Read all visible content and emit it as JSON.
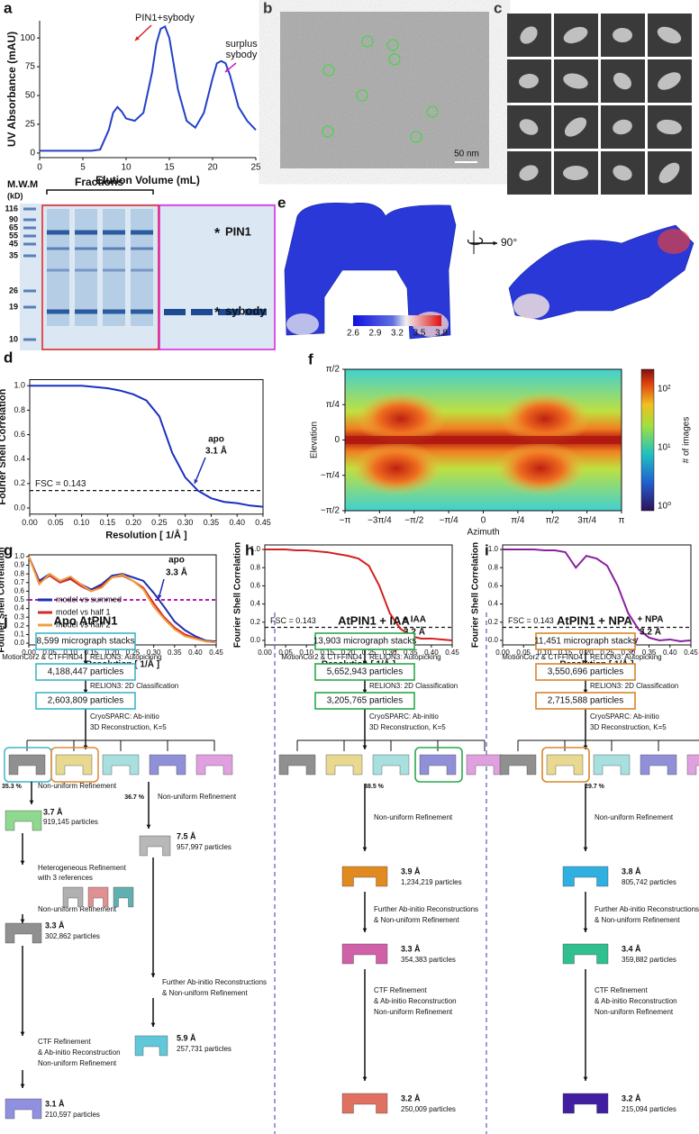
{
  "chart_data": [
    {
      "type": "line",
      "x_label": "Elution Volume (mL)",
      "y_label": "UV Absorbance (mAU)",
      "x": [
        0,
        2,
        4,
        6,
        7,
        8,
        8.5,
        9,
        9.5,
        10,
        11,
        12,
        13,
        13.5,
        14,
        14.5,
        15,
        16,
        17,
        18,
        19,
        20,
        20.5,
        21,
        21.5,
        22,
        23,
        24,
        25
      ],
      "series": [
        {
          "color": "#2340c8",
          "values": [
            2,
            2,
            2,
            2,
            3,
            20,
            35,
            40,
            36,
            30,
            28,
            35,
            70,
            95,
            108,
            110,
            100,
            55,
            28,
            22,
            35,
            65,
            78,
            80,
            78,
            68,
            40,
            28,
            20
          ]
        }
      ],
      "xlim": [
        0,
        25
      ],
      "ylim": [
        -4,
        115
      ],
      "xticks": [
        0,
        5,
        10,
        15,
        20,
        25
      ],
      "yticks": [
        0,
        25,
        50,
        75,
        100
      ],
      "annotations": [
        {
          "text": "PIN1+sybody",
          "color": "#111"
        },
        {
          "text": "surplus",
          "color": "#111"
        },
        {
          "text": "sybody",
          "color": "#111"
        }
      ]
    },
    {
      "type": "line",
      "x_label": "Resolution [ 1/Å ]",
      "y_label": "Fourier Shell Correlation",
      "x": [
        0,
        0.025,
        0.05,
        0.075,
        0.1,
        0.125,
        0.15,
        0.175,
        0.2,
        0.225,
        0.25,
        0.275,
        0.3,
        0.325,
        0.35,
        0.375,
        0.4,
        0.425,
        0.45
      ],
      "series": [
        {
          "color": "#1a2fbf",
          "values": [
            1,
            1,
            1,
            1,
            1,
            0.99,
            0.98,
            0.96,
            0.93,
            0.88,
            0.75,
            0.45,
            0.25,
            0.14,
            0.08,
            0.05,
            0.04,
            0.02,
            0.01
          ]
        }
      ],
      "xlim": [
        0,
        0.45
      ],
      "ylim": [
        -0.05,
        1.05
      ],
      "xticks": [
        {
          "value": 0,
          "label": "0.00"
        },
        0.05,
        {
          "value": 0.1,
          "label": "0.10"
        },
        0.15,
        {
          "value": 0.2,
          "label": "0.20"
        },
        0.25,
        {
          "value": 0.3,
          "label": "0.30"
        },
        0.35,
        {
          "value": 0.4,
          "label": "0.40"
        },
        0.45
      ],
      "yticks": [
        {
          "value": 0,
          "label": "0.0"
        },
        0.2,
        0.4,
        0.6,
        0.8,
        {
          "value": 1,
          "label": "1.0"
        }
      ],
      "threshold": {
        "value": 0.143,
        "label": "FSC = 0.143",
        "color": "#111"
      },
      "annotations": [
        {
          "text": "apo",
          "color": "#2a3fc8"
        },
        {
          "text": "3.1 Å",
          "color": "#2a3fc8"
        }
      ]
    },
    {
      "type": "line",
      "x_label": "Resolution [ 1/Å ]",
      "y_label": "Fourier Shell Correlation",
      "x": [
        0,
        0.025,
        0.05,
        0.075,
        0.1,
        0.125,
        0.15,
        0.175,
        0.2,
        0.225,
        0.25,
        0.275,
        0.3,
        0.325,
        0.35,
        0.375,
        0.4,
        0.425,
        0.45
      ],
      "series": [
        {
          "name": "model vs summed",
          "color": "#1f2fb0",
          "values": [
            1,
            0.72,
            0.8,
            0.72,
            0.76,
            0.68,
            0.62,
            0.68,
            0.78,
            0.8,
            0.76,
            0.72,
            0.58,
            0.42,
            0.25,
            0.15,
            0.08,
            0.03,
            0.02
          ]
        },
        {
          "name": "model vs half 1",
          "color": "#d42a2a",
          "values": [
            1,
            0.7,
            0.78,
            0.7,
            0.74,
            0.66,
            0.6,
            0.66,
            0.76,
            0.78,
            0.72,
            0.64,
            0.46,
            0.3,
            0.18,
            0.1,
            0.06,
            0.02,
            0.01
          ]
        },
        {
          "name": "model vs half 2",
          "color": "#f0a040",
          "values": [
            1,
            0.68,
            0.8,
            0.72,
            0.77,
            0.68,
            0.6,
            0.64,
            0.76,
            0.79,
            0.72,
            0.62,
            0.42,
            0.28,
            0.16,
            0.08,
            0.05,
            0.02,
            0.01
          ]
        }
      ],
      "xlim": [
        0,
        0.45
      ],
      "ylim": [
        -0.02,
        1.02
      ],
      "xticks": [
        {
          "value": 0,
          "label": "0.00"
        },
        0.05,
        {
          "value": 0.1,
          "label": "0.10"
        },
        0.15,
        {
          "value": 0.2,
          "label": "0.20"
        },
        0.25,
        {
          "value": 0.3,
          "label": "0.30"
        },
        0.35,
        {
          "value": 0.4,
          "label": "0.40"
        },
        0.45
      ],
      "yticks": [
        {
          "value": 0,
          "label": "0.0"
        },
        0.1,
        0.2,
        0.3,
        0.4,
        0.5,
        0.6,
        0.7,
        0.8,
        0.9,
        {
          "value": 1,
          "label": "1.0"
        }
      ],
      "threshold": {
        "value": 0.5,
        "color": "#b020b0"
      },
      "annotations": [
        {
          "text": "apo",
          "color": "#2a3fc8"
        },
        {
          "text": "3.3 Å",
          "color": "#2a3fc8"
        }
      ]
    },
    {
      "type": "line",
      "x_label": "Resolution [ 1/Å ]",
      "y_label": "Fourier Shell Correlation",
      "x": [
        0,
        0.025,
        0.05,
        0.075,
        0.1,
        0.125,
        0.15,
        0.175,
        0.2,
        0.225,
        0.25,
        0.275,
        0.3,
        0.325,
        0.35,
        0.375,
        0.4,
        0.425,
        0.45
      ],
      "series": [
        {
          "color": "#d42020",
          "values": [
            1,
            1,
            1,
            0.99,
            0.99,
            0.98,
            0.97,
            0.95,
            0.93,
            0.9,
            0.82,
            0.6,
            0.3,
            0.13,
            0.05,
            0.02,
            0.02,
            0.01,
            0
          ]
        }
      ],
      "xlim": [
        0,
        0.45
      ],
      "ylim": [
        -0.05,
        1.05
      ],
      "xticks": [
        {
          "value": 0,
          "label": "0.00"
        },
        0.05,
        {
          "value": 0.1,
          "label": "0.10"
        },
        0.15,
        {
          "value": 0.2,
          "label": "0.20"
        },
        0.25,
        {
          "value": 0.3,
          "label": "0.30"
        },
        0.35,
        {
          "value": 0.4,
          "label": "0.40"
        },
        0.45
      ],
      "yticks": [
        {
          "value": 0,
          "label": "0.0"
        },
        0.2,
        0.4,
        0.6,
        0.8,
        {
          "value": 1,
          "label": "1.0"
        }
      ],
      "threshold": {
        "value": 0.143,
        "label": "FSC = 0.143",
        "color": "#111"
      },
      "annotations": [
        {
          "text": "+ IAA",
          "color": "#d42020"
        },
        {
          "text": "3.2 Å",
          "color": "#d42020"
        }
      ]
    },
    {
      "type": "line",
      "x_label": "Resolution [ 1/Å ]",
      "y_label": "Fourier Shell Correlation",
      "x": [
        0,
        0.025,
        0.05,
        0.075,
        0.1,
        0.125,
        0.15,
        0.175,
        0.2,
        0.225,
        0.25,
        0.275,
        0.3,
        0.325,
        0.35,
        0.375,
        0.4,
        0.425,
        0.45
      ],
      "series": [
        {
          "color": "#8a1fa0",
          "values": [
            1,
            1,
            1,
            1,
            0.99,
            0.99,
            0.97,
            0.8,
            0.93,
            0.9,
            0.82,
            0.6,
            0.3,
            0.12,
            0.03,
            0,
            0.01,
            -0.01,
            0
          ]
        }
      ],
      "xlim": [
        0,
        0.45
      ],
      "ylim": [
        -0.05,
        1.05
      ],
      "xticks": [
        {
          "value": 0,
          "label": "0.00"
        },
        0.05,
        {
          "value": 0.1,
          "label": "0.10"
        },
        0.15,
        {
          "value": 0.2,
          "label": "0.20"
        },
        0.25,
        {
          "value": 0.3,
          "label": "0.30"
        },
        0.35,
        {
          "value": 0.4,
          "label": "0.40"
        },
        0.45
      ],
      "yticks": [
        {
          "value": 0,
          "label": "0.0"
        },
        0.2,
        0.4,
        0.6,
        0.8,
        {
          "value": 1,
          "label": "1.0"
        }
      ],
      "threshold": {
        "value": 0.143,
        "label": "FSC = 0.143",
        "color": "#111"
      },
      "annotations": [
        {
          "text": "+ NPA",
          "color": "#9a20b0"
        },
        {
          "text": "3.2 Å",
          "color": "#9a20b0"
        }
      ]
    }
  ],
  "panel_labels": [
    "a",
    "b",
    "c",
    "d",
    "e",
    "f",
    "g",
    "h",
    "i",
    "j"
  ],
  "micrograph": {
    "scale_bar": "50 nm"
  },
  "gel": {
    "marker": "M.W.M",
    "unit": "(kD)",
    "ladder": [
      "116",
      "90",
      "65",
      "55",
      "45",
      "35",
      "26",
      "19",
      "10"
    ],
    "fractions": "Fractions",
    "bands": [
      {
        "star": "*",
        "name": "PIN1"
      },
      {
        "star": "*",
        "name": "sybody"
      }
    ]
  },
  "map": {
    "rotation": "90°",
    "colorbar": [
      "2.6",
      "2.9",
      "3.2",
      "3.5",
      "3.8"
    ]
  },
  "orientation": {
    "y_label": "Elevation",
    "x_label": "Azimuth",
    "x_ticks": [
      "−π",
      "−3π/4",
      "−π/2",
      "−π/4",
      "0",
      "π/4",
      "π/2",
      "3π/4",
      "π"
    ],
    "y_ticks": [
      "−π/2",
      "−π/4",
      "0",
      "π/4",
      "π/2"
    ],
    "colorbar_label": "# of images",
    "colorbar_ticks": [
      "10⁰",
      "10¹",
      "10²"
    ]
  },
  "workflow": {
    "columns": [
      {
        "items": [
          "Apo AtPIN1",
          "8,599 micrograph stacks",
          "MotionCor2 & CTFFIND4",
          "RELION3: Autopicking",
          "4,188,447 particles",
          "RELION3: 2D Classification",
          "2,603,809 particles",
          "CryoSPARC: Ab-initio",
          "3D Reconstruction, K=5",
          "35.3 %",
          "Non-uniform Refinement",
          "36.7 %",
          "Non-uniform Refinement",
          "3.7 Å",
          "919,145 particles",
          "7.5 Å",
          "957,997 particles",
          "Heterogeneous Refinement",
          "with 3 references",
          "Non-uniform Refinement",
          "Further Ab-initio Reconstructions",
          "& Non-uniform Refinement",
          "3.3 Å",
          "302,862 particles",
          "5.9 Å",
          "257,731 particles",
          "CTF Refinement",
          "& Ab-initio Reconstruction",
          "Non-uniform Refinement",
          "3.1 Å",
          "210,597 particles"
        ]
      },
      {
        "items": [
          "AtPIN1 + IAA",
          "13,903 micrograph stacks",
          "MotionCor2 & CTFFIND4",
          "RELION3: Autopicking",
          "5,652,943 particles",
          "RELION3: 2D Classification",
          "3,205,765 particles",
          "CryoSPARC: Ab-initio",
          "3D Reconstruction, K=5",
          "38.5 %",
          "Non-uniform Refinement",
          "3.9 Å",
          "1,234,219 particles",
          "Further Ab-initio Reconstructions",
          "& Non-uniform Refinement",
          "3.3 Å",
          "354,383 particles",
          "CTF Refinement",
          "& Ab-initio Reconstruction",
          "Non-uniform Refinement",
          "3.2 Å",
          "250,009 particles"
        ]
      },
      {
        "items": [
          "AtPIN1 + NPA",
          "11,451 micrograph stacks",
          "MotionCor2 & CTFFIND4",
          "RELION3: Autopicking",
          "3,550,696 particles",
          "RELION3: 2D Classification",
          "2,715,588 particles",
          "CryoSPARC: Ab-initio",
          "3D Reconstruction, K=5",
          "29.7 %",
          "Non-uniform Refinement",
          "3.8 Å",
          "805,742 particles",
          "Further Ab-initio Reconstructions",
          "& Non-uniform Refinement",
          "3.4 Å",
          "359,882 particles",
          "CTF Refinement",
          "& Ab-initio Reconstruction",
          "Non-uniform Refinement",
          "3.2 Å",
          "215,094 particles"
        ]
      }
    ]
  }
}
